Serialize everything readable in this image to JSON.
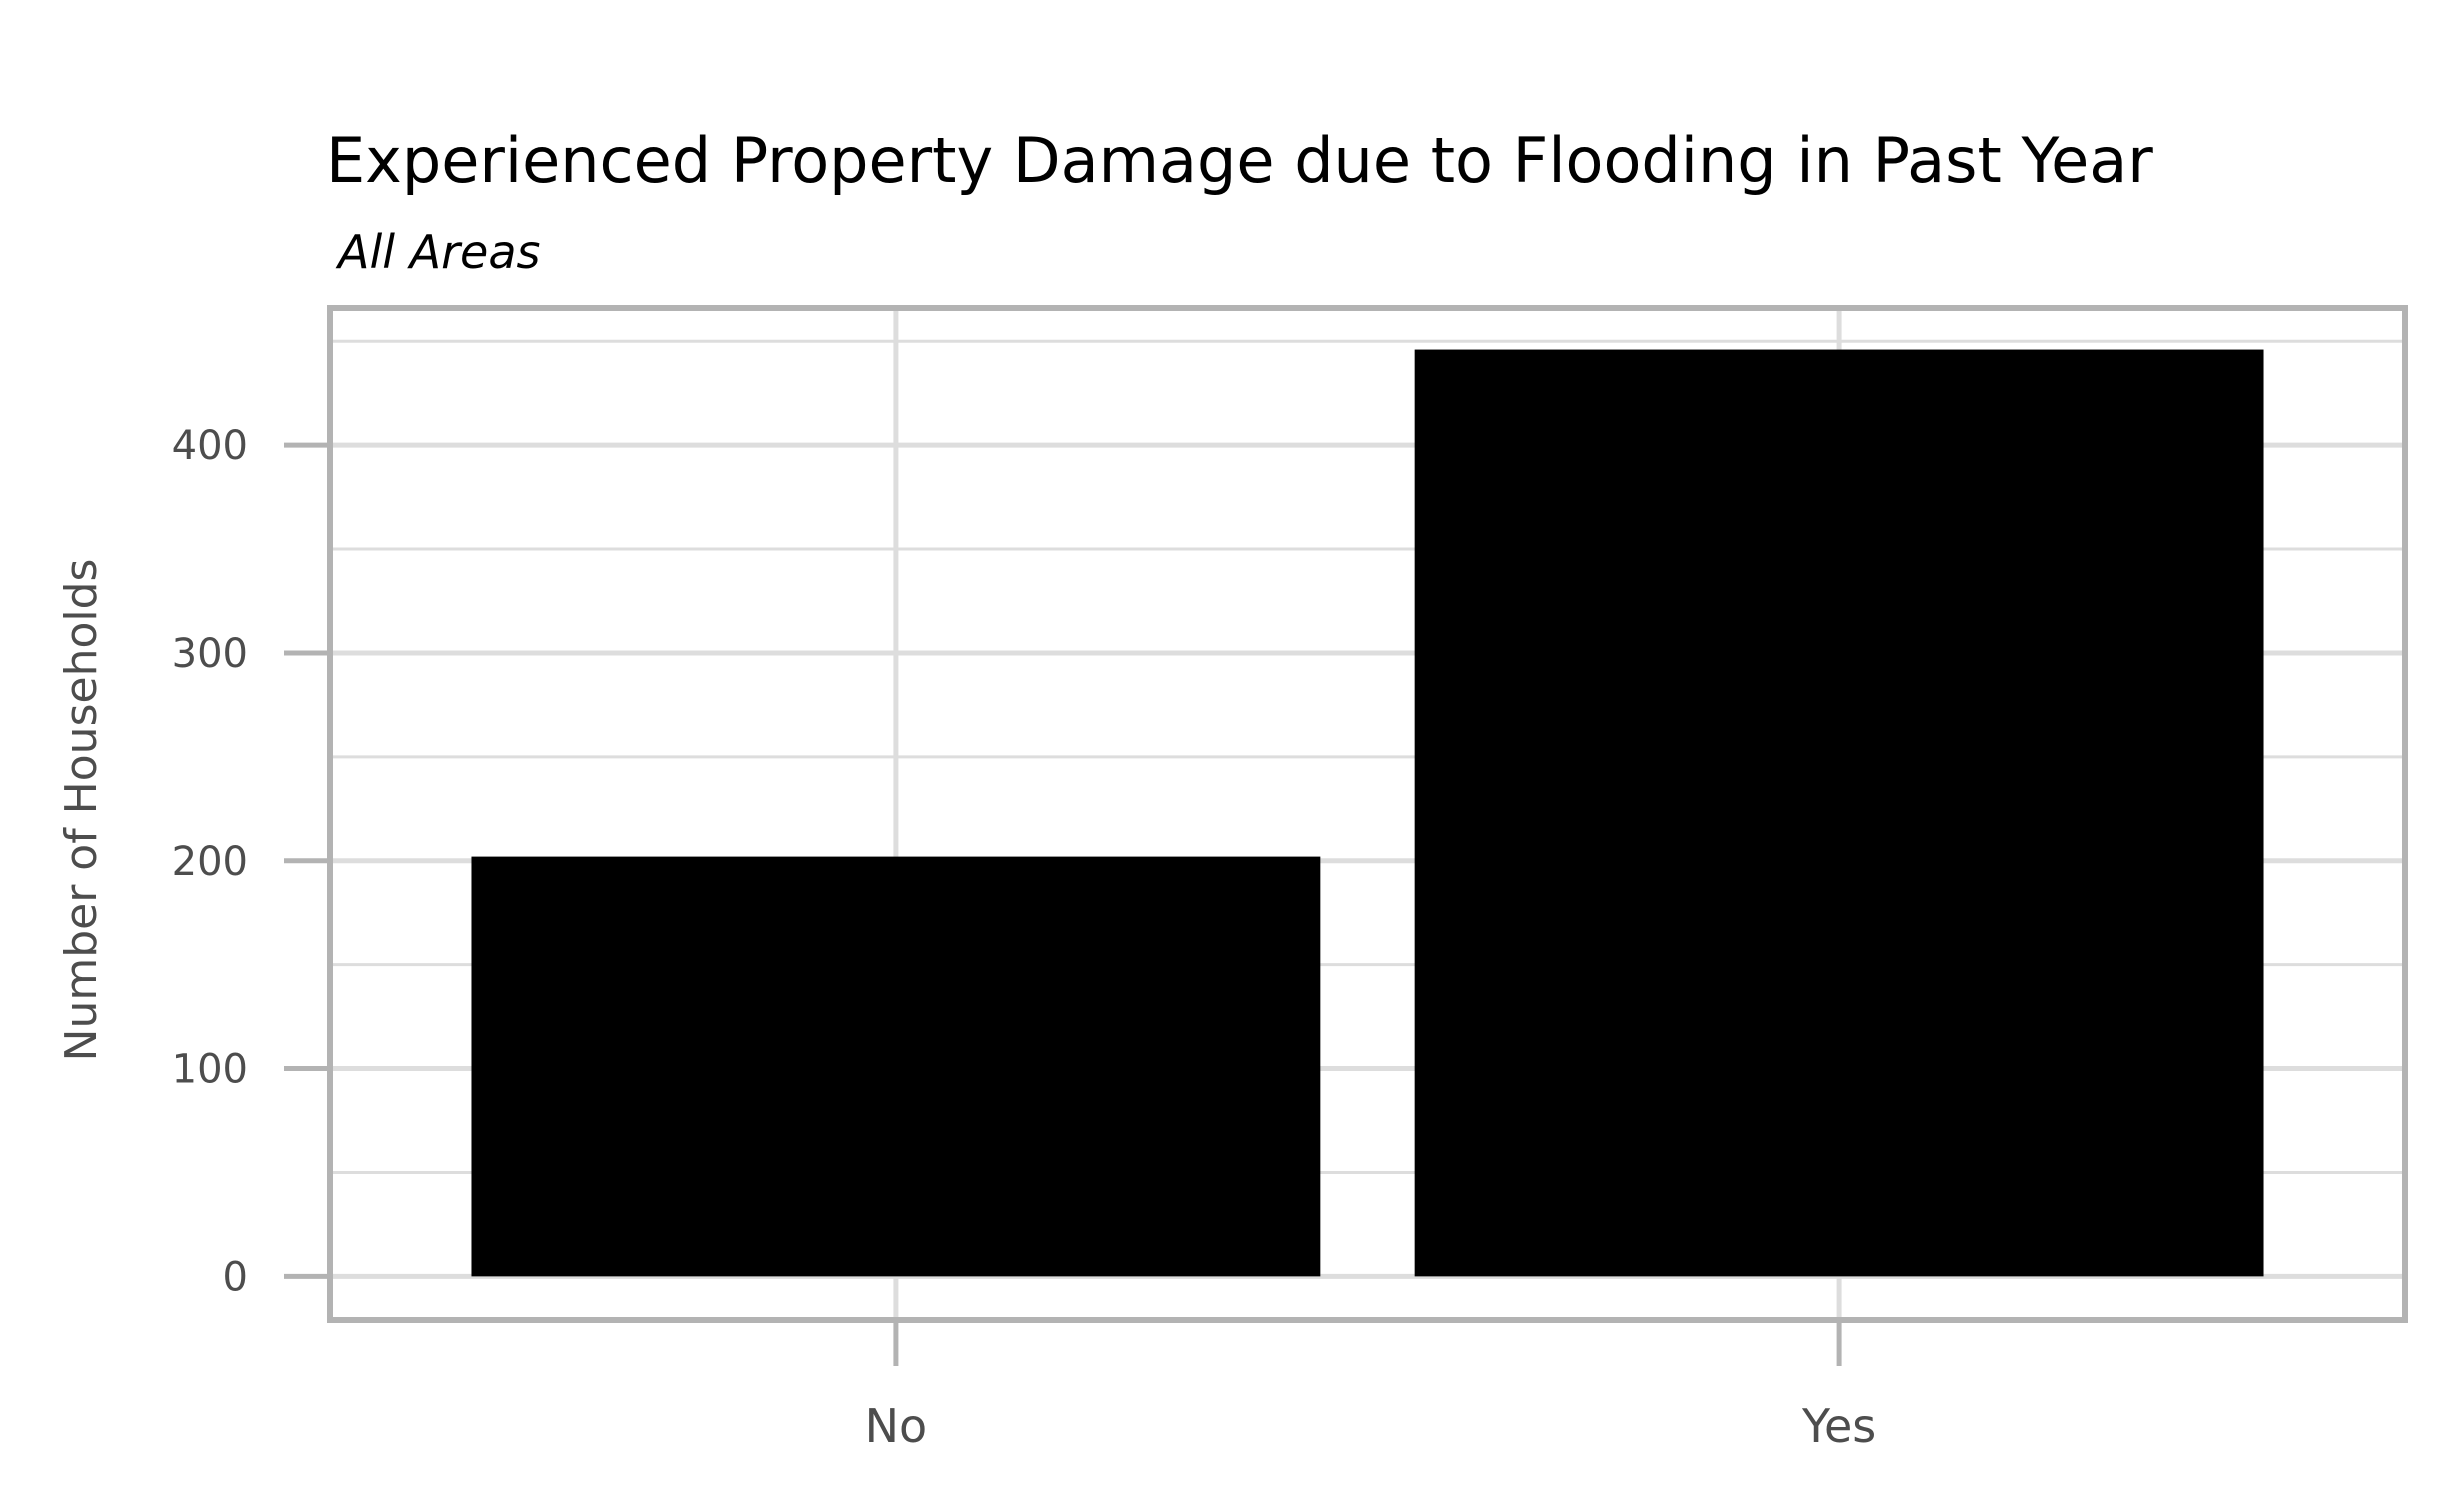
{
  "chart_data": {
    "type": "bar",
    "title": "Experienced Property Damage due to Flooding in Past Year",
    "subtitle": "All Areas",
    "xlabel": "",
    "ylabel": "Number of Households",
    "categories": [
      "No",
      "Yes"
    ],
    "values": [
      202,
      446
    ],
    "ylim": [
      -21,
      466
    ],
    "yticks": [
      0,
      100,
      200,
      300,
      400
    ],
    "ytick_labels": [
      "0",
      "100",
      "200",
      "300",
      "400"
    ],
    "grid": true,
    "bar_color": "#000000",
    "grid_color": "#dddddd",
    "panel_border_color": "#b3b3b3"
  }
}
